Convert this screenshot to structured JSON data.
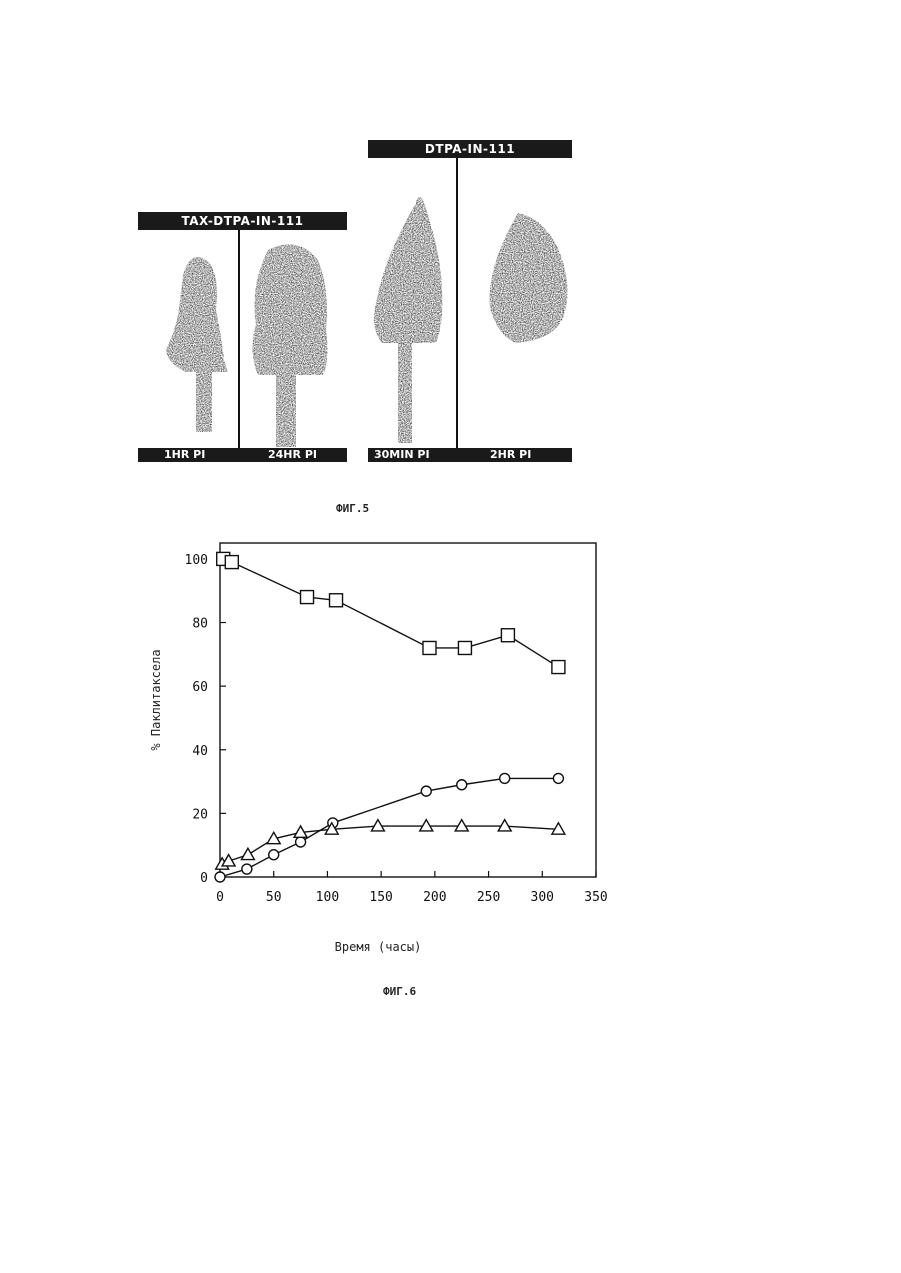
{
  "fig5": {
    "left_title": "TAX-DTPA-IN-111",
    "right_title": "DTPA-IN-111",
    "left_labels": [
      "1HR PI",
      "24HR PI"
    ],
    "right_labels": [
      "30MIN PI",
      "2HR PI"
    ],
    "caption": "ФИГ.5"
  },
  "fig6": {
    "caption": "ФИГ.6"
  },
  "chart_data": {
    "type": "line",
    "xlabel": "Время (часы)",
    "ylabel": "% Паклитаксела",
    "xlim": [
      0,
      350
    ],
    "ylim": [
      0,
      105
    ],
    "xticks": [
      "0",
      "50",
      "100",
      "150",
      "200",
      "250",
      "300",
      "350"
    ],
    "yticks": [
      "0",
      "20",
      "40",
      "60",
      "80",
      "100"
    ],
    "grid": false,
    "series": [
      {
        "marker": "square",
        "x": [
          3,
          11,
          81,
          108,
          195,
          228,
          268,
          315
        ],
        "y": [
          100,
          99,
          88,
          87,
          72,
          72,
          76,
          66
        ]
      },
      {
        "marker": "circle",
        "x": [
          0,
          25,
          50,
          75,
          105,
          192,
          225,
          265,
          315
        ],
        "y": [
          0,
          2.5,
          7,
          11,
          17,
          27,
          29,
          31,
          31
        ]
      },
      {
        "marker": "triangle",
        "x": [
          2,
          8,
          26,
          50,
          75,
          104,
          147,
          192,
          225,
          265,
          315
        ],
        "y": [
          4,
          5,
          7,
          12,
          14,
          15,
          16,
          16,
          16,
          16,
          15
        ]
      }
    ]
  }
}
